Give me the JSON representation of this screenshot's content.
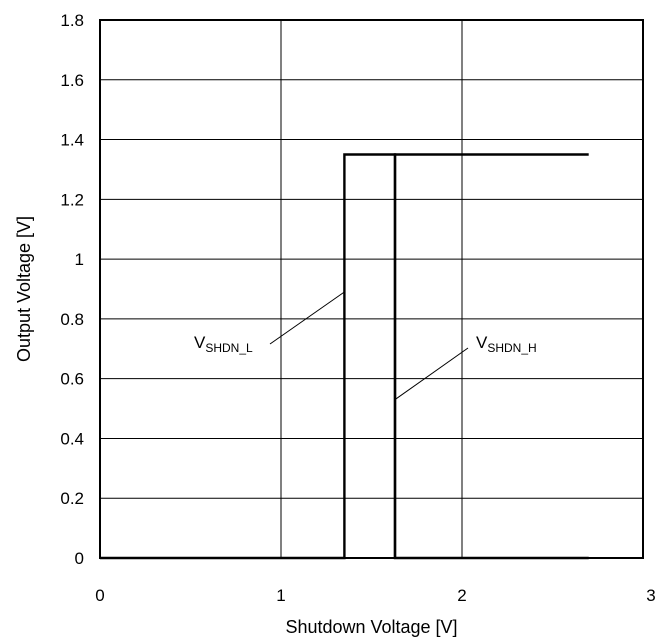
{
  "chart_data": {
    "type": "line",
    "xlabel": "Shutdown Voltage [V]",
    "ylabel": "Output Voltage [V]",
    "xlim": [
      0,
      3
    ],
    "ylim": [
      0,
      1.8
    ],
    "x_ticks": [
      0,
      1,
      2,
      3
    ],
    "x_tick_labels": [
      "0",
      "1",
      "2",
      "3"
    ],
    "y_ticks": [
      0,
      0.2,
      0.4,
      0.6,
      0.8,
      1.0,
      1.2,
      1.4,
      1.6,
      1.8
    ],
    "y_tick_labels": [
      "0",
      "0.2",
      "0.4",
      "0.6",
      "0.8",
      "1",
      "1.2",
      "1.4",
      "1.6",
      "1.8"
    ],
    "grid": true,
    "series": [
      {
        "x": [
          0,
          1.35,
          1.35,
          1.63,
          1.63,
          2.7
        ],
        "y": [
          0,
          0,
          1.35,
          1.35,
          0,
          0
        ],
        "color": "#000000"
      },
      {
        "x": [
          1.63,
          1.63,
          2.7
        ],
        "y": [
          0,
          1.35,
          1.35
        ],
        "color": "#000000"
      }
    ],
    "annotations": [
      {
        "main": "V",
        "sub": "SHDN_L",
        "points_to": {
          "x": 1.35,
          "y": 0.89
        }
      },
      {
        "main": "V",
        "sub": "SHDN_H",
        "points_to": {
          "x": 1.63,
          "y": 0.53
        }
      }
    ]
  }
}
